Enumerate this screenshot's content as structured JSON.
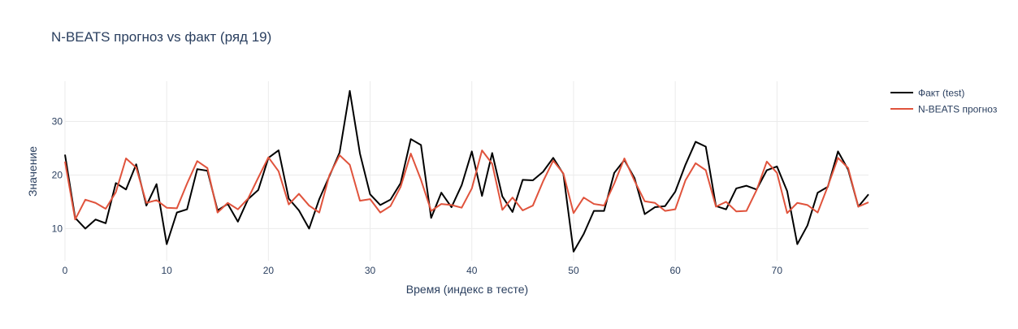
{
  "chart_data": {
    "type": "line",
    "title": "N-BEATS прогноз vs факт (ряд 19)",
    "xlabel": "Время (индекс в тесте)",
    "ylabel": "Значение",
    "xlim": [
      0,
      79
    ],
    "ylim": [
      4,
      37.5
    ],
    "xticks": [
      0,
      10,
      20,
      30,
      40,
      50,
      60,
      70
    ],
    "yticks": [
      10,
      20,
      30
    ],
    "grid": true,
    "legend_position": "top-right",
    "series": [
      {
        "name": "Факт (test)",
        "color": "#000000",
        "x": [
          0,
          1,
          2,
          3,
          4,
          5,
          6,
          7,
          8,
          9,
          10,
          11,
          12,
          13,
          14,
          15,
          16,
          17,
          18,
          19,
          20,
          21,
          22,
          23,
          24,
          25,
          26,
          27,
          28,
          29,
          30,
          31,
          32,
          33,
          34,
          35,
          36,
          37,
          38,
          39,
          40,
          41,
          42,
          43,
          44,
          45,
          46,
          47,
          48,
          49,
          50,
          51,
          52,
          53,
          54,
          55,
          56,
          57,
          58,
          59,
          60,
          61,
          62,
          63,
          64,
          65,
          66,
          67,
          68,
          69,
          70,
          71,
          72,
          73,
          74,
          75,
          76,
          77,
          78,
          79
        ],
        "y": [
          23.8,
          12.0,
          10.0,
          11.7,
          11.0,
          18.5,
          17.3,
          22.0,
          14.3,
          18.3,
          7.1,
          13.0,
          13.6,
          21.1,
          20.8,
          13.4,
          14.6,
          11.3,
          15.5,
          17.2,
          23.2,
          24.6,
          15.6,
          13.4,
          10.0,
          15.5,
          19.8,
          24.2,
          35.7,
          24.0,
          16.4,
          14.4,
          15.4,
          18.5,
          26.7,
          25.6,
          12.0,
          16.7,
          14.0,
          18.1,
          24.4,
          16.1,
          24.1,
          16.0,
          13.1,
          19.1,
          19.0,
          20.6,
          23.2,
          20.2,
          5.7,
          9.0,
          13.3,
          13.3,
          20.4,
          22.8,
          19.4,
          12.7,
          14.0,
          14.2,
          16.9,
          21.9,
          26.2,
          25.3,
          14.2,
          13.6,
          17.5,
          18.0,
          17.3,
          20.9,
          21.6,
          17.0,
          7.1,
          10.6,
          16.7,
          17.8,
          24.4,
          21.0,
          14.1,
          16.4
        ]
      },
      {
        "name": "N-BEATS прогноз",
        "color": "#e0533c",
        "x": [
          0,
          1,
          2,
          3,
          4,
          5,
          6,
          7,
          8,
          9,
          10,
          11,
          12,
          13,
          14,
          15,
          16,
          17,
          18,
          19,
          20,
          21,
          22,
          23,
          24,
          25,
          26,
          27,
          28,
          29,
          30,
          31,
          32,
          33,
          34,
          35,
          36,
          37,
          38,
          39,
          40,
          41,
          42,
          43,
          44,
          45,
          46,
          47,
          48,
          49,
          50,
          51,
          52,
          53,
          54,
          55,
          56,
          57,
          58,
          59,
          60,
          61,
          62,
          63,
          64,
          65,
          66,
          67,
          68,
          69,
          70,
          71,
          72,
          73,
          74,
          75,
          76,
          77,
          78,
          79
        ],
        "y": [
          22.5,
          11.7,
          15.4,
          14.8,
          13.7,
          16.8,
          23.1,
          21.4,
          14.8,
          15.3,
          13.9,
          13.8,
          18.4,
          22.6,
          21.3,
          13.0,
          14.8,
          13.6,
          15.6,
          19.5,
          23.3,
          20.7,
          14.5,
          16.5,
          14.3,
          13.0,
          20.0,
          23.7,
          21.9,
          15.2,
          15.5,
          13.0,
          14.2,
          17.8,
          24.0,
          19.1,
          13.3,
          14.6,
          14.4,
          13.9,
          17.5,
          24.6,
          22.1,
          13.5,
          15.8,
          13.4,
          14.3,
          18.8,
          22.7,
          20.3,
          12.9,
          15.8,
          14.6,
          14.3,
          18.4,
          23.1,
          18.9,
          15.1,
          14.8,
          13.3,
          13.6,
          19.0,
          22.2,
          20.9,
          14.1,
          15.0,
          13.2,
          13.3,
          17.2,
          22.5,
          20.4,
          12.9,
          14.8,
          14.4,
          13.0,
          17.9,
          23.2,
          21.3,
          14.1,
          14.9
        ]
      }
    ]
  }
}
